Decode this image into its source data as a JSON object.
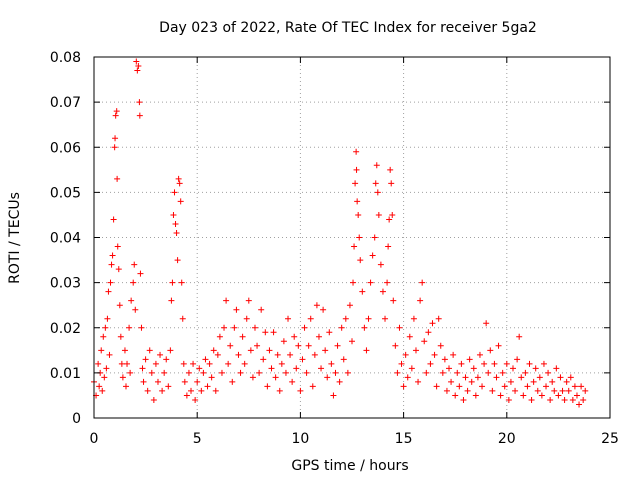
{
  "chart_data": {
    "type": "scatter",
    "title": "Day 023 of 2022, Rate Of TEC Index for receiver 5ga2",
    "xlabel": "GPS time / hours",
    "ylabel": "ROTI / TECUs",
    "xlim": [
      0,
      25
    ],
    "ylim": [
      0,
      0.08
    ],
    "xticks": [
      0,
      5,
      10,
      15,
      20,
      25
    ],
    "xtick_labels": [
      "0",
      "5",
      "10",
      "15",
      "20",
      "25"
    ],
    "yticks": [
      0,
      0.01,
      0.02,
      0.03,
      0.04,
      0.05,
      0.06,
      0.07,
      0.08
    ],
    "ytick_labels": [
      "0",
      "0.01",
      "0.02",
      "0.03",
      "0.04",
      "0.05",
      "0.06",
      "0.07",
      "0.08"
    ],
    "grid": true,
    "marker": "+",
    "color": "#ff0000",
    "series": [
      {
        "name": "ROTI",
        "points": [
          [
            0.0,
            0.008
          ],
          [
            0.1,
            0.005
          ],
          [
            0.2,
            0.012
          ],
          [
            0.25,
            0.007
          ],
          [
            0.3,
            0.01
          ],
          [
            0.35,
            0.015
          ],
          [
            0.4,
            0.006
          ],
          [
            0.45,
            0.018
          ],
          [
            0.5,
            0.009
          ],
          [
            0.55,
            0.02
          ],
          [
            0.6,
            0.011
          ],
          [
            0.65,
            0.022
          ],
          [
            0.7,
            0.028
          ],
          [
            0.75,
            0.014
          ],
          [
            0.8,
            0.03
          ],
          [
            0.85,
            0.034
          ],
          [
            0.9,
            0.036
          ],
          [
            0.95,
            0.044
          ],
          [
            1.0,
            0.06
          ],
          [
            1.02,
            0.062
          ],
          [
            1.05,
            0.067
          ],
          [
            1.1,
            0.068
          ],
          [
            1.12,
            0.053
          ],
          [
            1.15,
            0.038
          ],
          [
            1.2,
            0.033
          ],
          [
            1.25,
            0.025
          ],
          [
            1.3,
            0.018
          ],
          [
            1.35,
            0.012
          ],
          [
            1.4,
            0.009
          ],
          [
            1.5,
            0.015
          ],
          [
            1.55,
            0.007
          ],
          [
            1.6,
            0.012
          ],
          [
            1.7,
            0.02
          ],
          [
            1.75,
            0.01
          ],
          [
            1.8,
            0.026
          ],
          [
            1.9,
            0.03
          ],
          [
            1.95,
            0.034
          ],
          [
            2.0,
            0.024
          ],
          [
            2.05,
            0.079
          ],
          [
            2.1,
            0.077
          ],
          [
            2.15,
            0.078
          ],
          [
            2.2,
            0.07
          ],
          [
            2.22,
            0.067
          ],
          [
            2.25,
            0.032
          ],
          [
            2.3,
            0.02
          ],
          [
            2.35,
            0.011
          ],
          [
            2.4,
            0.008
          ],
          [
            2.5,
            0.013
          ],
          [
            2.6,
            0.006
          ],
          [
            2.7,
            0.015
          ],
          [
            2.8,
            0.01
          ],
          [
            2.9,
            0.004
          ],
          [
            3.0,
            0.012
          ],
          [
            3.1,
            0.008
          ],
          [
            3.2,
            0.014
          ],
          [
            3.3,
            0.006
          ],
          [
            3.4,
            0.01
          ],
          [
            3.5,
            0.013
          ],
          [
            3.6,
            0.007
          ],
          [
            3.7,
            0.015
          ],
          [
            3.75,
            0.026
          ],
          [
            3.8,
            0.03
          ],
          [
            3.85,
            0.045
          ],
          [
            3.9,
            0.05
          ],
          [
            3.95,
            0.043
          ],
          [
            4.0,
            0.041
          ],
          [
            4.05,
            0.035
          ],
          [
            4.1,
            0.053
          ],
          [
            4.15,
            0.052
          ],
          [
            4.2,
            0.048
          ],
          [
            4.25,
            0.03
          ],
          [
            4.3,
            0.022
          ],
          [
            4.35,
            0.012
          ],
          [
            4.4,
            0.008
          ],
          [
            4.5,
            0.005
          ],
          [
            4.6,
            0.01
          ],
          [
            4.7,
            0.006
          ],
          [
            4.8,
            0.012
          ],
          [
            4.9,
            0.004
          ],
          [
            5.0,
            0.008
          ],
          [
            5.1,
            0.011
          ],
          [
            5.2,
            0.006
          ],
          [
            5.3,
            0.01
          ],
          [
            5.4,
            0.013
          ],
          [
            5.5,
            0.007
          ],
          [
            5.6,
            0.012
          ],
          [
            5.7,
            0.009
          ],
          [
            5.8,
            0.015
          ],
          [
            5.9,
            0.006
          ],
          [
            6.0,
            0.014
          ],
          [
            6.1,
            0.018
          ],
          [
            6.2,
            0.01
          ],
          [
            6.3,
            0.02
          ],
          [
            6.4,
            0.026
          ],
          [
            6.5,
            0.012
          ],
          [
            6.6,
            0.016
          ],
          [
            6.7,
            0.008
          ],
          [
            6.8,
            0.02
          ],
          [
            6.9,
            0.024
          ],
          [
            7.0,
            0.014
          ],
          [
            7.1,
            0.01
          ],
          [
            7.2,
            0.018
          ],
          [
            7.3,
            0.012
          ],
          [
            7.4,
            0.022
          ],
          [
            7.5,
            0.026
          ],
          [
            7.6,
            0.015
          ],
          [
            7.7,
            0.009
          ],
          [
            7.8,
            0.02
          ],
          [
            7.9,
            0.016
          ],
          [
            8.0,
            0.01
          ],
          [
            8.1,
            0.024
          ],
          [
            8.2,
            0.013
          ],
          [
            8.3,
            0.019
          ],
          [
            8.4,
            0.007
          ],
          [
            8.5,
            0.015
          ],
          [
            8.6,
            0.011
          ],
          [
            8.7,
            0.019
          ],
          [
            8.8,
            0.009
          ],
          [
            8.9,
            0.014
          ],
          [
            9.0,
            0.006
          ],
          [
            9.1,
            0.012
          ],
          [
            9.2,
            0.017
          ],
          [
            9.3,
            0.01
          ],
          [
            9.4,
            0.022
          ],
          [
            9.5,
            0.014
          ],
          [
            9.6,
            0.008
          ],
          [
            9.7,
            0.018
          ],
          [
            9.8,
            0.011
          ],
          [
            9.9,
            0.016
          ],
          [
            10.0,
            0.006
          ],
          [
            10.1,
            0.013
          ],
          [
            10.2,
            0.02
          ],
          [
            10.3,
            0.01
          ],
          [
            10.4,
            0.016
          ],
          [
            10.5,
            0.022
          ],
          [
            10.6,
            0.007
          ],
          [
            10.7,
            0.014
          ],
          [
            10.8,
            0.025
          ],
          [
            10.9,
            0.018
          ],
          [
            11.0,
            0.011
          ],
          [
            11.1,
            0.024
          ],
          [
            11.2,
            0.015
          ],
          [
            11.3,
            0.009
          ],
          [
            11.4,
            0.019
          ],
          [
            11.5,
            0.012
          ],
          [
            11.6,
            0.005
          ],
          [
            11.7,
            0.01
          ],
          [
            11.8,
            0.016
          ],
          [
            11.9,
            0.008
          ],
          [
            12.0,
            0.02
          ],
          [
            12.1,
            0.013
          ],
          [
            12.2,
            0.022
          ],
          [
            12.3,
            0.01
          ],
          [
            12.4,
            0.025
          ],
          [
            12.5,
            0.017
          ],
          [
            12.55,
            0.03
          ],
          [
            12.6,
            0.038
          ],
          [
            12.65,
            0.052
          ],
          [
            12.7,
            0.059
          ],
          [
            12.72,
            0.055
          ],
          [
            12.75,
            0.048
          ],
          [
            12.8,
            0.045
          ],
          [
            12.85,
            0.04
          ],
          [
            12.9,
            0.035
          ],
          [
            13.0,
            0.028
          ],
          [
            13.1,
            0.02
          ],
          [
            13.2,
            0.015
          ],
          [
            13.3,
            0.022
          ],
          [
            13.4,
            0.03
          ],
          [
            13.5,
            0.036
          ],
          [
            13.6,
            0.04
          ],
          [
            13.65,
            0.052
          ],
          [
            13.7,
            0.056
          ],
          [
            13.75,
            0.05
          ],
          [
            13.8,
            0.045
          ],
          [
            13.9,
            0.034
          ],
          [
            14.0,
            0.028
          ],
          [
            14.1,
            0.022
          ],
          [
            14.2,
            0.03
          ],
          [
            14.25,
            0.038
          ],
          [
            14.3,
            0.044
          ],
          [
            14.35,
            0.055
          ],
          [
            14.4,
            0.052
          ],
          [
            14.45,
            0.045
          ],
          [
            14.5,
            0.026
          ],
          [
            14.6,
            0.016
          ],
          [
            14.7,
            0.01
          ],
          [
            14.8,
            0.02
          ],
          [
            14.9,
            0.012
          ],
          [
            15.0,
            0.007
          ],
          [
            15.1,
            0.014
          ],
          [
            15.2,
            0.009
          ],
          [
            15.3,
            0.018
          ],
          [
            15.4,
            0.011
          ],
          [
            15.5,
            0.022
          ],
          [
            15.6,
            0.015
          ],
          [
            15.7,
            0.008
          ],
          [
            15.8,
            0.026
          ],
          [
            15.9,
            0.03
          ],
          [
            16.0,
            0.017
          ],
          [
            16.1,
            0.01
          ],
          [
            16.2,
            0.019
          ],
          [
            16.3,
            0.012
          ],
          [
            16.4,
            0.021
          ],
          [
            16.5,
            0.014
          ],
          [
            16.6,
            0.007
          ],
          [
            16.7,
            0.022
          ],
          [
            16.8,
            0.016
          ],
          [
            16.9,
            0.01
          ],
          [
            17.0,
            0.013
          ],
          [
            17.1,
            0.006
          ],
          [
            17.2,
            0.011
          ],
          [
            17.3,
            0.008
          ],
          [
            17.4,
            0.014
          ],
          [
            17.5,
            0.005
          ],
          [
            17.6,
            0.01
          ],
          [
            17.7,
            0.007
          ],
          [
            17.8,
            0.012
          ],
          [
            17.9,
            0.004
          ],
          [
            18.0,
            0.009
          ],
          [
            18.1,
            0.006
          ],
          [
            18.2,
            0.013
          ],
          [
            18.3,
            0.008
          ],
          [
            18.4,
            0.011
          ],
          [
            18.5,
            0.005
          ],
          [
            18.6,
            0.009
          ],
          [
            18.7,
            0.014
          ],
          [
            18.8,
            0.007
          ],
          [
            18.9,
            0.012
          ],
          [
            19.0,
            0.021
          ],
          [
            19.1,
            0.01
          ],
          [
            19.2,
            0.015
          ],
          [
            19.3,
            0.006
          ],
          [
            19.4,
            0.012
          ],
          [
            19.5,
            0.009
          ],
          [
            19.6,
            0.016
          ],
          [
            19.7,
            0.005
          ],
          [
            19.8,
            0.01
          ],
          [
            19.9,
            0.007
          ],
          [
            20.0,
            0.012
          ],
          [
            20.1,
            0.004
          ],
          [
            20.2,
            0.008
          ],
          [
            20.3,
            0.011
          ],
          [
            20.4,
            0.006
          ],
          [
            20.5,
            0.013
          ],
          [
            20.6,
            0.018
          ],
          [
            20.7,
            0.009
          ],
          [
            20.8,
            0.005
          ],
          [
            20.9,
            0.01
          ],
          [
            21.0,
            0.007
          ],
          [
            21.1,
            0.012
          ],
          [
            21.2,
            0.004
          ],
          [
            21.3,
            0.008
          ],
          [
            21.4,
            0.011
          ],
          [
            21.5,
            0.006
          ],
          [
            21.6,
            0.009
          ],
          [
            21.7,
            0.005
          ],
          [
            21.8,
            0.012
          ],
          [
            21.9,
            0.007
          ],
          [
            22.0,
            0.01
          ],
          [
            22.1,
            0.004
          ],
          [
            22.2,
            0.008
          ],
          [
            22.3,
            0.006
          ],
          [
            22.4,
            0.011
          ],
          [
            22.5,
            0.005
          ],
          [
            22.6,
            0.009
          ],
          [
            22.7,
            0.006
          ],
          [
            22.8,
            0.004
          ],
          [
            22.9,
            0.008
          ],
          [
            23.0,
            0.006
          ],
          [
            23.1,
            0.009
          ],
          [
            23.2,
            0.004
          ],
          [
            23.3,
            0.007
          ],
          [
            23.4,
            0.005
          ],
          [
            23.5,
            0.003
          ],
          [
            23.6,
            0.007
          ],
          [
            23.7,
            0.004
          ],
          [
            23.8,
            0.006
          ]
        ]
      }
    ]
  }
}
